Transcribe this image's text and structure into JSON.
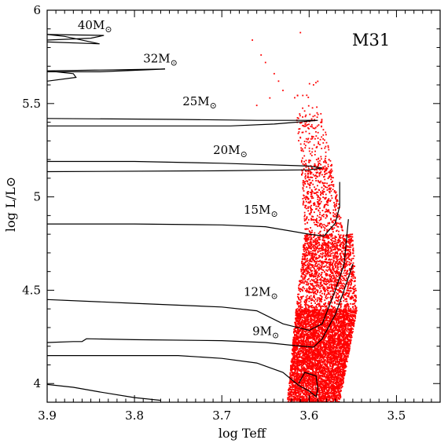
{
  "chart_data": {
    "type": "scatter",
    "title": "",
    "panel_label": "M31",
    "xlabel": "log Teff",
    "ylabel": "log L/L⊙",
    "xlim": [
      3.9,
      3.45
    ],
    "ylim": [
      3.9,
      6.0
    ],
    "xticks": [
      {
        "value": 3.9,
        "label": "3.9"
      },
      {
        "value": 3.8,
        "label": "3.8"
      },
      {
        "value": 3.7,
        "label": "3.7"
      },
      {
        "value": 3.6,
        "label": "3.6"
      },
      {
        "value": 3.5,
        "label": "3.5"
      }
    ],
    "yticks": [
      {
        "value": 4.0,
        "label": "4"
      },
      {
        "value": 4.5,
        "label": "4.5"
      },
      {
        "value": 5.0,
        "label": "5"
      },
      {
        "value": 5.5,
        "label": "5.5"
      },
      {
        "value": 6.0,
        "label": "6"
      }
    ],
    "point_color": "#ff0000",
    "line_color": "#000000",
    "scatter_bands": [
      {
        "ymin": 3.9,
        "ymax": 4.4,
        "xmin_at_low": 3.625,
        "xmax_at_low": 3.565,
        "xmin_at_high": 3.615,
        "xmax_at_high": 3.545,
        "count": 5200
      },
      {
        "ymin": 4.4,
        "ymax": 4.8,
        "xmin_at_low": 3.615,
        "xmax_at_low": 3.545,
        "xmin_at_high": 3.605,
        "xmax_at_high": 3.55,
        "count": 1700
      },
      {
        "ymin": 4.8,
        "ymax": 5.2,
        "xmin_at_low": 3.605,
        "xmax_at_low": 3.56,
        "xmin_at_high": 3.61,
        "xmax_at_high": 3.575,
        "count": 550
      },
      {
        "ymin": 5.2,
        "ymax": 5.45,
        "xmin_at_low": 3.61,
        "xmax_at_low": 3.575,
        "xmin_at_high": 3.615,
        "xmax_at_high": 3.585,
        "count": 130
      },
      {
        "ymin": 5.45,
        "ymax": 5.62,
        "xmin_at_low": 3.62,
        "xmax_at_low": 3.59,
        "xmin_at_high": 3.615,
        "xmax_at_high": 3.59,
        "count": 14
      }
    ],
    "scatter_outliers": [
      {
        "x": 3.665,
        "y": 5.84
      },
      {
        "x": 3.61,
        "y": 5.88
      },
      {
        "x": 3.655,
        "y": 5.76
      },
      {
        "x": 3.65,
        "y": 5.72
      },
      {
        "x": 3.64,
        "y": 5.66
      },
      {
        "x": 3.635,
        "y": 5.62
      },
      {
        "x": 3.645,
        "y": 5.53
      },
      {
        "x": 3.66,
        "y": 5.49
      },
      {
        "x": 3.63,
        "y": 5.57
      },
      {
        "x": 3.595,
        "y": 5.6
      }
    ],
    "tracks": [
      {
        "name": "40M⊙",
        "label_x": 3.865,
        "label_y": 5.9,
        "points": [
          [
            3.9,
            5.84
          ],
          [
            3.85,
            5.85
          ],
          [
            3.835,
            5.865
          ],
          [
            3.9,
            5.87
          ],
          [
            3.88,
            5.86
          ],
          [
            3.84,
            5.82
          ],
          [
            3.9,
            5.83
          ]
        ]
      },
      {
        "name": "32M⊙",
        "label_x": 3.79,
        "label_y": 5.72,
        "points": [
          [
            3.9,
            5.67
          ],
          [
            3.84,
            5.67
          ],
          [
            3.765,
            5.685
          ],
          [
            3.9,
            5.675
          ],
          [
            3.87,
            5.66
          ],
          [
            3.867,
            5.64
          ],
          [
            3.9,
            5.62
          ]
        ]
      },
      {
        "name": "25M⊙",
        "label_x": 3.745,
        "label_y": 5.49,
        "points": [
          [
            3.9,
            5.42
          ],
          [
            3.75,
            5.415
          ],
          [
            3.66,
            5.41
          ],
          [
            3.59,
            5.41
          ],
          [
            3.64,
            5.39
          ],
          [
            3.69,
            5.38
          ],
          [
            3.9,
            5.38
          ]
        ]
      },
      {
        "name": "20M⊙",
        "label_x": 3.71,
        "label_y": 5.23,
        "points": [
          [
            3.9,
            5.19
          ],
          [
            3.8,
            5.19
          ],
          [
            3.7,
            5.18
          ],
          [
            3.6,
            5.165
          ],
          [
            3.585,
            5.155
          ],
          [
            3.6,
            5.145
          ],
          [
            3.7,
            5.14
          ],
          [
            3.9,
            5.135
          ]
        ]
      },
      {
        "name": "15M⊙",
        "label_x": 3.675,
        "label_y": 4.91,
        "points": [
          [
            3.9,
            4.855
          ],
          [
            3.8,
            4.855
          ],
          [
            3.7,
            4.85
          ],
          [
            3.65,
            4.84
          ],
          [
            3.6,
            4.8
          ],
          [
            3.583,
            4.79
          ],
          [
            3.57,
            4.86
          ],
          [
            3.565,
            4.95
          ],
          [
            3.565,
            5.08
          ]
        ]
      },
      {
        "name": "12M⊙",
        "label_x": 3.675,
        "label_y": 4.47,
        "points": [
          [
            3.9,
            4.45
          ],
          [
            3.8,
            4.43
          ],
          [
            3.7,
            4.41
          ],
          [
            3.66,
            4.39
          ],
          [
            3.63,
            4.32
          ],
          [
            3.6,
            4.285
          ],
          [
            3.585,
            4.32
          ],
          [
            3.57,
            4.5
          ],
          [
            3.56,
            4.64
          ],
          [
            3.555,
            4.88
          ]
        ]
      },
      {
        "name": "9M⊙",
        "label_x": 3.665,
        "label_y": 4.26,
        "points": [
          [
            3.9,
            4.22
          ],
          [
            3.87,
            4.225
          ],
          [
            3.86,
            4.225
          ],
          [
            3.855,
            4.24
          ],
          [
            3.8,
            4.235
          ],
          [
            3.7,
            4.23
          ],
          [
            3.65,
            4.22
          ],
          [
            3.62,
            4.205
          ],
          [
            3.595,
            4.195
          ],
          [
            3.585,
            4.24
          ],
          [
            3.57,
            4.37
          ],
          [
            3.56,
            4.5
          ],
          [
            3.55,
            4.64
          ]
        ]
      },
      {
        "name": "",
        "label_x": null,
        "label_y": null,
        "points": [
          [
            3.9,
            4.15
          ],
          [
            3.75,
            4.15
          ],
          [
            3.7,
            4.135
          ],
          [
            3.66,
            4.11
          ],
          [
            3.63,
            4.06
          ],
          [
            3.612,
            3.99
          ],
          [
            3.6,
            3.96
          ],
          [
            3.592,
            3.93
          ],
          [
            3.59,
            3.97
          ],
          [
            3.592,
            4.04
          ],
          [
            3.605,
            4.06
          ],
          [
            3.612,
            4.0
          ]
        ]
      },
      {
        "name": "",
        "label_x": null,
        "label_y": null,
        "points": [
          [
            3.9,
            3.995
          ],
          [
            3.87,
            3.98
          ],
          [
            3.84,
            3.955
          ],
          [
            3.8,
            3.925
          ],
          [
            3.77,
            3.91
          ]
        ]
      }
    ]
  }
}
